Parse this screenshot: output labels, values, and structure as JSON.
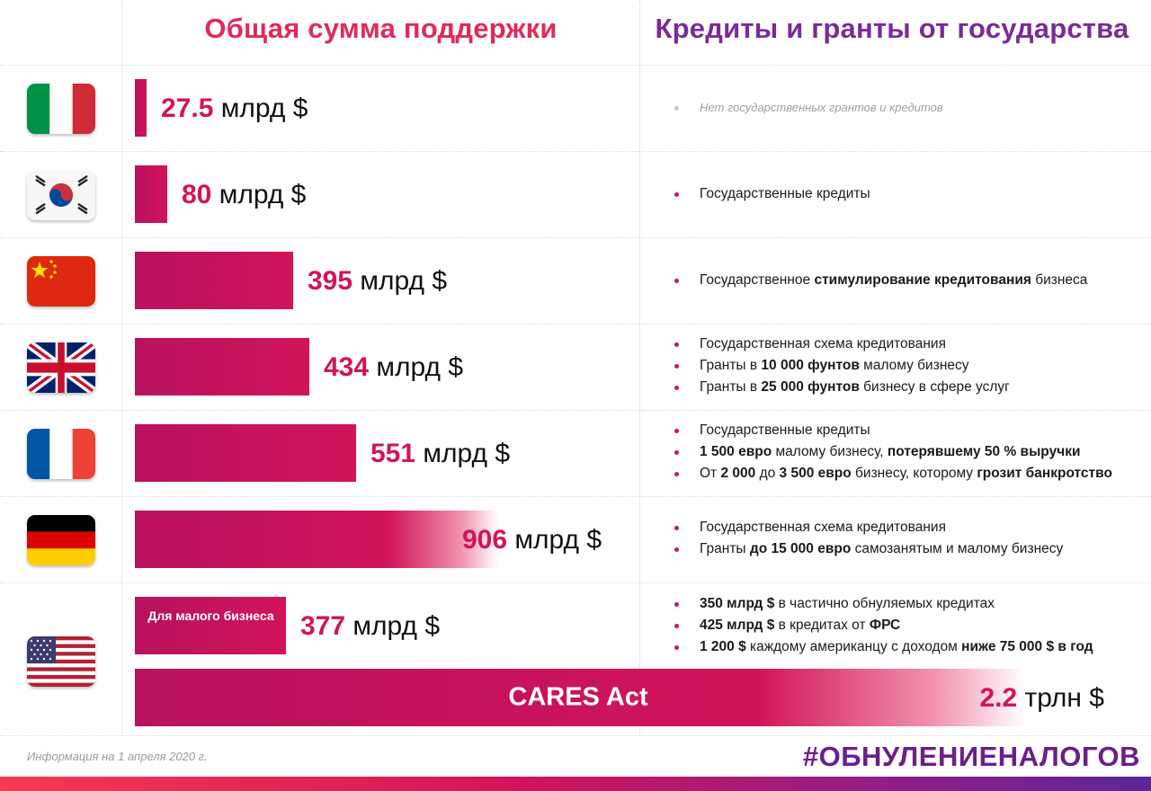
{
  "header": {
    "left_title": "Общая сумма поддержки",
    "right_title": "Кредиты и гранты от государства"
  },
  "colors": {
    "accent": "#d1145a",
    "title_left": "#dd2b5c",
    "title_right": "#7a2b96",
    "hashtag": "#6b1f8a"
  },
  "chart_data": {
    "type": "bar",
    "orientation": "horizontal",
    "title": "Общая сумма поддержки",
    "categories": [
      "Италия",
      "Южная Корея",
      "Китай",
      "Великобритания",
      "Франция",
      "Германия",
      "США — для малого бизнеса",
      "США — CARES Act"
    ],
    "values_bln_usd": [
      27.5,
      80,
      395,
      434,
      551,
      906,
      377,
      2200
    ],
    "labels": [
      {
        "num": "27.5",
        "unit": "млрд $"
      },
      {
        "num": "80",
        "unit": "млрд $"
      },
      {
        "num": "395",
        "unit": "млрд $"
      },
      {
        "num": "434",
        "unit": "млрд $"
      },
      {
        "num": "551",
        "unit": "млрд $"
      },
      {
        "num": "906",
        "unit": "млрд $"
      },
      {
        "num": "377",
        "unit": "млрд $"
      },
      {
        "num": "2.2",
        "unit": "трлн $"
      }
    ],
    "bar_texts": {
      "small_business": "Для малого бизнеса",
      "cares": "CARES Act"
    }
  },
  "rows": [
    {
      "flag": "italy-flag-icon",
      "bullets": [
        [
          "Нет государственных грантов и кредитов"
        ]
      ]
    },
    {
      "flag": "south-korea-flag-icon",
      "bullets": [
        [
          "Государственные кредиты"
        ]
      ]
    },
    {
      "flag": "china-flag-icon",
      "bullets": [
        [
          "Государственное ",
          "стимулирование кредитования",
          " бизнеса"
        ]
      ]
    },
    {
      "flag": "uk-flag-icon",
      "bullets": [
        [
          "Государственная схема кредитования"
        ],
        [
          "Гранты в ",
          "10 000 фунтов",
          " малому бизнесу"
        ],
        [
          "Гранты в ",
          "25 000 фунтов",
          " бизнесу в сфере услуг"
        ]
      ]
    },
    {
      "flag": "france-flag-icon",
      "bullets": [
        [
          "Государственные кредиты"
        ],
        [
          "",
          "1 500 евро",
          " малому бизнесу, ",
          "потерявшему 50 % выручки"
        ],
        [
          "От ",
          "2 000",
          " до ",
          "3 500 евро",
          " бизнесу, которому ",
          "грозит банкротство"
        ]
      ]
    },
    {
      "flag": "germany-flag-icon",
      "bullets": [
        [
          "Государственная схема кредитования"
        ],
        [
          "Гранты ",
          "до 15 000 евро",
          " самозанятым и малому бизнесу"
        ]
      ]
    },
    {
      "flag": "usa-flag-icon",
      "bullets": [
        [
          "",
          "350 млрд $",
          " в частично обнуляемых кредитах"
        ],
        [
          "",
          "425 млрд $",
          " в кредитах от ",
          "ФРС"
        ],
        [
          "",
          "1 200 $",
          " каждому американцу с доходом ",
          "ниже 75 000 $ в год"
        ]
      ]
    }
  ],
  "footer": {
    "note": "Информация на 1 апреля 2020 г.",
    "hashtag": "#ОБНУЛЕНИЕНАЛОГОВ"
  }
}
